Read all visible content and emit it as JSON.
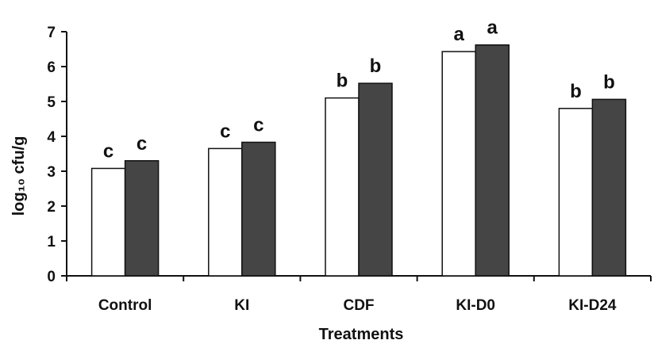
{
  "chart_data": {
    "type": "bar",
    "categories": [
      "Control",
      "KI",
      "CDF",
      "KI-D0",
      "KI-D24"
    ],
    "series": [
      {
        "values": [
          3.08,
          3.65,
          5.1,
          6.43,
          4.8
        ],
        "color": "#ffffff"
      },
      {
        "values": [
          3.3,
          3.83,
          5.52,
          6.62,
          5.06
        ],
        "color": "#454545"
      }
    ],
    "significance_letters": [
      [
        "c",
        "c"
      ],
      [
        "c",
        "c"
      ],
      [
        "b",
        "b"
      ],
      [
        "a",
        "a"
      ],
      [
        "b",
        "b"
      ]
    ],
    "yticks": [
      "0",
      "1",
      "2",
      "3",
      "4",
      "5",
      "6",
      "7"
    ],
    "ylim": [
      0,
      7
    ],
    "xlabel": "Treatments",
    "ylabel": "log₁₀ cfu/g",
    "grid": false
  }
}
